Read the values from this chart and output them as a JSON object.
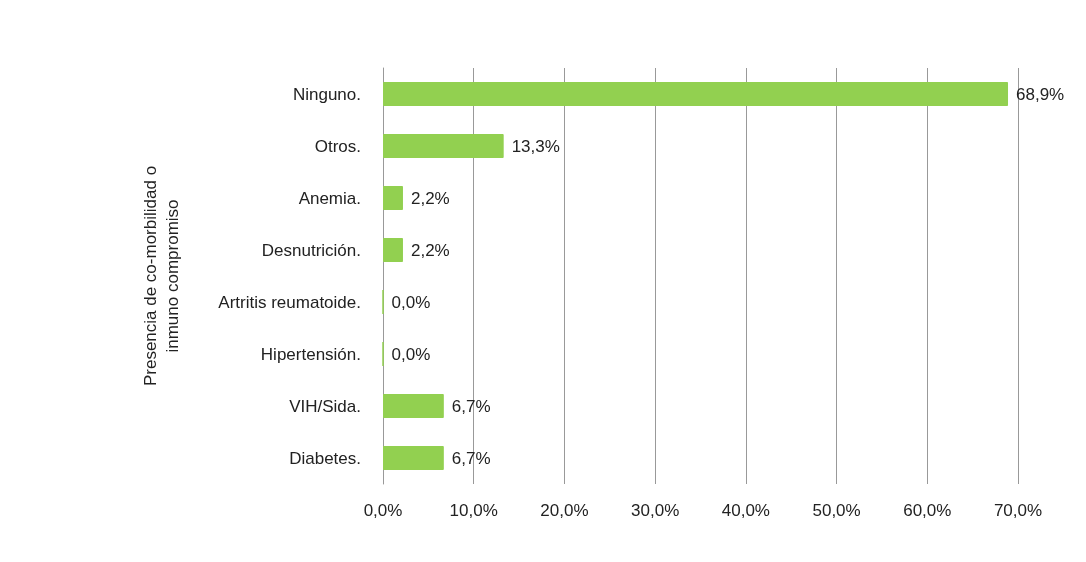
{
  "chart_data": {
    "type": "bar",
    "orientation": "horizontal",
    "ylabel": "Presencia de co-morbilidad o inmuno compromiso",
    "categories": [
      "Ninguno.",
      "Otros.",
      "Anemia.",
      "Desnutrición.",
      "Artritis reumatoide.",
      "Hipertensión.",
      "VIH/Sida.",
      "Diabetes."
    ],
    "values": [
      68.9,
      13.3,
      2.2,
      2.2,
      0,
      0,
      6.7,
      6.7
    ],
    "value_labels": [
      "68,9%",
      "13,3%",
      "2,2%",
      "2,2%",
      "0,0%",
      "0,0%",
      "6,7%",
      "6,7%"
    ],
    "color": "#92d050",
    "xlim": [
      0,
      70
    ],
    "xticks": [
      {
        "value": 0,
        "label": "0,0%"
      },
      {
        "value": 10,
        "label": "10,0%"
      },
      {
        "value": 20,
        "label": "20,0%"
      },
      {
        "value": 30,
        "label": "30,0%"
      },
      {
        "value": 40,
        "label": "40,0%"
      },
      {
        "value": 50,
        "label": "50,0%"
      },
      {
        "value": 60,
        "label": "60,0%"
      },
      {
        "value": 70,
        "label": "70,0%"
      }
    ],
    "grid": "x"
  }
}
